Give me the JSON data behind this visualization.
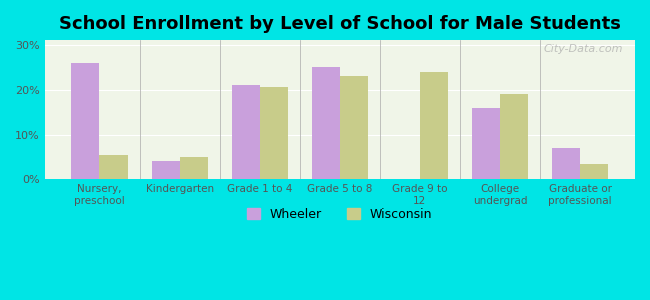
{
  "title": "School Enrollment by Level of School for Male Students",
  "categories": [
    "Nursery,\npreschool",
    "Kindergarten",
    "Grade 1 to 4",
    "Grade 5 to 8",
    "Grade 9 to\n12",
    "College\nundergrad",
    "Graduate or\nprofessional"
  ],
  "wheeler": [
    26,
    4,
    21,
    25,
    0,
    16,
    7
  ],
  "wisconsin": [
    5.5,
    5,
    20.5,
    23,
    24,
    19,
    3.5
  ],
  "wheeler_color": "#c9a0dc",
  "wisconsin_color": "#c8cc8a",
  "background_color": "#00e5e5",
  "plot_bg_color": "#f0f5e8",
  "yticks": [
    0,
    10,
    20,
    30
  ],
  "ylim": [
    0,
    31
  ],
  "bar_width": 0.35,
  "legend_labels": [
    "Wheeler",
    "Wisconsin"
  ],
  "watermark": "City-Data.com"
}
